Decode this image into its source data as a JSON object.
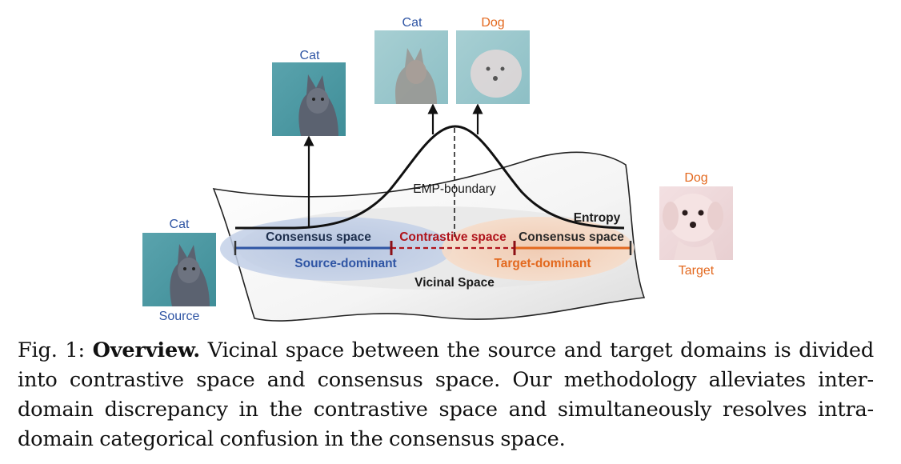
{
  "figure": {
    "source_top_label": "Cat",
    "source_bottom_label": "Source",
    "cat_mid_label": "Cat",
    "cat_top_label": "Cat",
    "dog_top_label": "Dog",
    "target_top_label": "Dog",
    "target_bottom_label": "Target",
    "boundary_label": "EMP-boundary",
    "entropy_label": "Entropy",
    "consensus_left_label": "Consensus space",
    "contrastive_label": "Contrastive space",
    "consensus_right_label": "Consensus space",
    "source_dominant_label": "Source-dominant",
    "target_dominant_label": "Target-dominant",
    "vicinal_label": "Vicinal Space",
    "colors": {
      "source_blue": "#2f55a4",
      "target_orange": "#e3691f",
      "contrastive_red": "#b0141c"
    }
  },
  "caption": {
    "prefix": "Fig. 1: ",
    "title": "Overview.",
    "body": " Vicinal space between the source and target domains is divided into contrastive space and consensus space. Our methodology alleviates inter-domain discrepancy in the contrastive space and simultaneously resolves intra-domain categorical confusion in the consensus space."
  }
}
